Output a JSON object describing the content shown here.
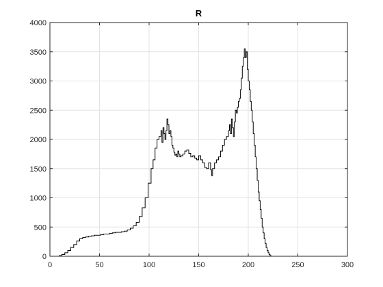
{
  "chart_data": {
    "type": "line",
    "title": "R",
    "xlabel": "",
    "ylabel": "",
    "xlim": [
      0,
      300
    ],
    "ylim": [
      0,
      4000
    ],
    "x_ticks": [
      0,
      50,
      100,
      150,
      200,
      250,
      300
    ],
    "y_ticks": [
      0,
      500,
      1000,
      1500,
      2000,
      2500,
      3000,
      3500,
      4000
    ],
    "x_tick_labels": [
      "0",
      "50",
      "100",
      "150",
      "200",
      "250",
      "300"
    ],
    "y_tick_labels": [
      "0",
      "500",
      "1000",
      "1500",
      "2000",
      "2500",
      "3000",
      "3500",
      "4000"
    ],
    "grid": true,
    "style": "stairs",
    "line_color": "#000000",
    "series": [
      {
        "x": [
          9,
          12,
          15,
          18,
          21,
          24,
          27,
          30,
          33,
          36,
          39,
          42,
          45,
          48,
          51,
          54,
          57,
          60,
          63,
          66,
          69,
          72,
          75,
          78,
          81,
          84,
          87,
          90,
          93,
          96,
          99,
          102,
          104,
          106,
          108,
          110,
          112,
          113,
          114,
          115,
          116,
          117,
          118,
          119,
          120,
          121,
          122,
          123,
          124,
          125,
          126,
          127,
          128,
          129,
          130,
          131,
          132,
          134,
          136,
          138,
          140,
          142,
          144,
          146,
          148,
          150,
          152,
          154,
          156,
          158,
          160,
          162,
          163,
          164,
          166,
          168,
          170,
          172,
          174,
          176,
          178,
          180,
          181,
          182,
          183,
          184,
          185,
          186,
          187,
          188,
          189,
          190,
          191,
          192,
          193,
          194,
          195,
          196,
          197,
          198,
          199,
          200,
          201,
          202,
          203,
          204,
          205,
          206,
          207,
          208,
          209,
          210,
          211,
          212,
          213,
          214,
          215,
          216,
          217,
          218,
          219,
          220,
          221,
          222,
          223,
          224,
          225,
          226,
          227,
          228
        ],
        "y": [
          10,
          30,
          60,
          100,
          150,
          200,
          260,
          300,
          320,
          330,
          340,
          350,
          360,
          360,
          370,
          380,
          380,
          390,
          400,
          410,
          410,
          420,
          430,
          450,
          480,
          520,
          580,
          680,
          830,
          1000,
          1250,
          1500,
          1650,
          1850,
          2000,
          2050,
          2150,
          1950,
          2200,
          2100,
          2000,
          2150,
          2350,
          2250,
          2100,
          2150,
          2050,
          1900,
          1850,
          1780,
          1730,
          1750,
          1700,
          1800,
          1750,
          1700,
          1720,
          1750,
          1800,
          1820,
          1760,
          1700,
          1720,
          1680,
          1650,
          1720,
          1650,
          1600,
          1520,
          1500,
          1600,
          1480,
          1380,
          1500,
          1600,
          1650,
          1700,
          1800,
          1900,
          2000,
          2050,
          2150,
          2250,
          2100,
          2350,
          2200,
          2050,
          2300,
          2500,
          2450,
          2550,
          2650,
          2700,
          2850,
          3050,
          3250,
          3400,
          3550,
          3400,
          3500,
          3200,
          3000,
          2850,
          2650,
          2500,
          2300,
          2100,
          1900,
          1700,
          1500,
          1300,
          1100,
          950,
          800,
          650,
          500,
          400,
          300,
          220,
          150,
          100,
          60,
          30,
          10,
          0,
          0,
          0,
          0,
          0,
          0
        ]
      }
    ]
  }
}
